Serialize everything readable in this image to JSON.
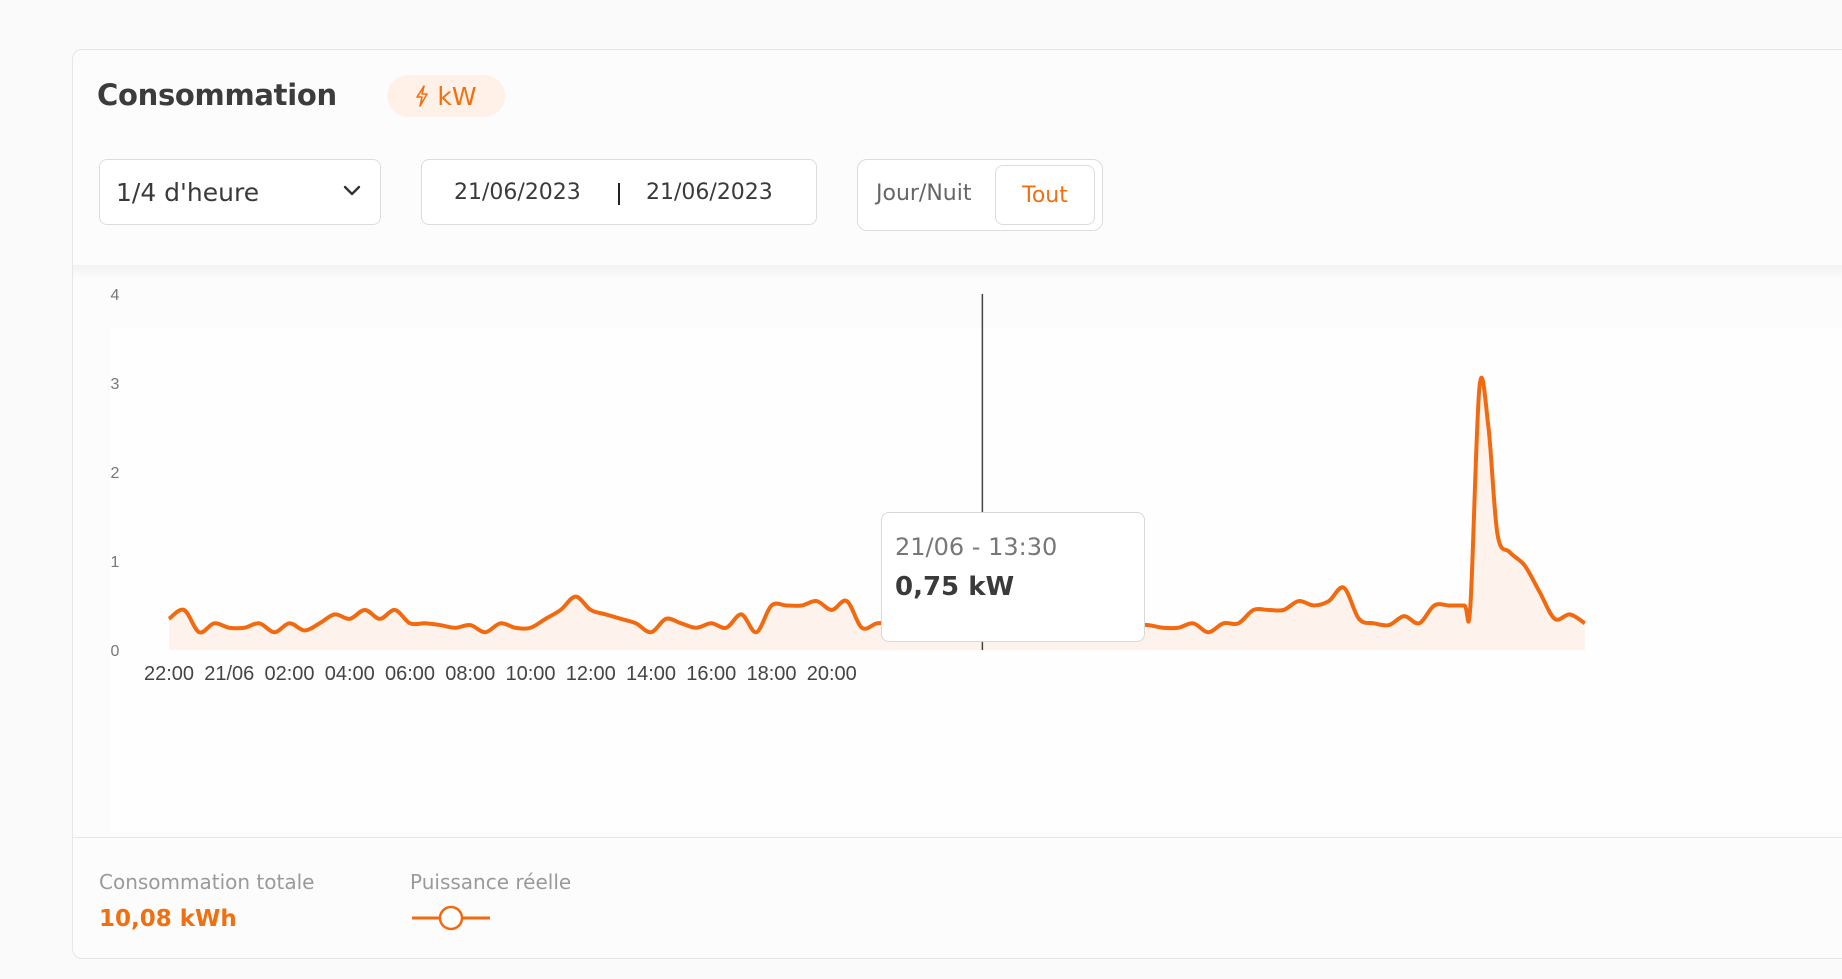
{
  "header": {
    "title": "Consommation",
    "unit_badge": "kW",
    "unit_icon": "bolt-icon"
  },
  "controls": {
    "granularity": "1/4 d'heure",
    "date_start": "21/06/2023",
    "date_end": "21/06/2023",
    "toggle_options": [
      "Jour/Nuit",
      "Tout"
    ],
    "toggle_selected": "Tout"
  },
  "tooltip": {
    "date": "21/06 - 13:30",
    "value": "0,75 kW"
  },
  "footer": {
    "total_label": "Consommation totale",
    "total_value": "10,08 kWh",
    "legend_label": "Puissance réelle"
  },
  "colors": {
    "accent": "#f07010",
    "line": "#f26a10",
    "fill": "#fdf3ec"
  },
  "chart_data": {
    "type": "area",
    "x_tick_labels": [
      "22:00",
      "21/06",
      "02:00",
      "04:00",
      "06:00",
      "08:00",
      "10:00",
      "12:00",
      "14:00",
      "16:00",
      "18:00",
      "20:00"
    ],
    "y_tick_labels": [
      "0",
      "1",
      "2",
      "3",
      "4"
    ],
    "ylim": [
      0,
      4
    ],
    "series": [
      {
        "name": "Puissance réelle",
        "points": [
          [
            0,
            0.35
          ],
          [
            0.25,
            0.45
          ],
          [
            0.5,
            0.2
          ],
          [
            0.75,
            0.3
          ],
          [
            1,
            0.25
          ],
          [
            1.25,
            0.25
          ],
          [
            1.5,
            0.3
          ],
          [
            1.75,
            0.2
          ],
          [
            2,
            0.3
          ],
          [
            2.25,
            0.22
          ],
          [
            2.5,
            0.3
          ],
          [
            2.75,
            0.4
          ],
          [
            3,
            0.35
          ],
          [
            3.25,
            0.45
          ],
          [
            3.5,
            0.35
          ],
          [
            3.75,
            0.45
          ],
          [
            4,
            0.3
          ],
          [
            4.25,
            0.3
          ],
          [
            4.5,
            0.28
          ],
          [
            4.75,
            0.25
          ],
          [
            5,
            0.28
          ],
          [
            5.25,
            0.2
          ],
          [
            5.5,
            0.3
          ],
          [
            5.75,
            0.25
          ],
          [
            6,
            0.25
          ],
          [
            6.25,
            0.35
          ],
          [
            6.5,
            0.45
          ],
          [
            6.75,
            0.6
          ],
          [
            7,
            0.45
          ],
          [
            7.25,
            0.4
          ],
          [
            7.5,
            0.35
          ],
          [
            7.75,
            0.3
          ],
          [
            8,
            0.2
          ],
          [
            8.25,
            0.35
          ],
          [
            8.5,
            0.3
          ],
          [
            8.75,
            0.25
          ],
          [
            9,
            0.3
          ],
          [
            9.25,
            0.25
          ],
          [
            9.5,
            0.4
          ],
          [
            9.75,
            0.2
          ],
          [
            10,
            0.5
          ],
          [
            10.25,
            0.5
          ],
          [
            10.5,
            0.5
          ],
          [
            10.75,
            0.55
          ],
          [
            11,
            0.45
          ],
          [
            11.25,
            0.55
          ],
          [
            11.5,
            0.25
          ],
          [
            11.75,
            0.3
          ],
          [
            12,
            0.3
          ],
          [
            12.25,
            0.3
          ],
          [
            12.5,
            0.45
          ],
          [
            12.75,
            0.25
          ],
          [
            13,
            0.3
          ],
          [
            13.25,
            0.45
          ],
          [
            13.5,
            0.75
          ],
          [
            13.75,
            0.65
          ],
          [
            14,
            0.55
          ],
          [
            14.25,
            0.5
          ],
          [
            14.5,
            0.4
          ],
          [
            14.75,
            0.45
          ],
          [
            15,
            0.5
          ],
          [
            15.25,
            0.4
          ],
          [
            15.5,
            0.38
          ],
          [
            15.75,
            0.25
          ],
          [
            16,
            0.28
          ],
          [
            16.25,
            0.28
          ],
          [
            16.5,
            0.25
          ],
          [
            16.75,
            0.25
          ],
          [
            17,
            0.3
          ],
          [
            17.25,
            0.2
          ],
          [
            17.5,
            0.3
          ],
          [
            17.75,
            0.3
          ],
          [
            18,
            0.45
          ],
          [
            18.25,
            0.45
          ],
          [
            18.5,
            0.45
          ],
          [
            18.75,
            0.55
          ],
          [
            19,
            0.5
          ],
          [
            19.25,
            0.55
          ],
          [
            19.5,
            0.7
          ],
          [
            19.75,
            0.35
          ],
          [
            20,
            0.3
          ],
          [
            20.25,
            0.28
          ],
          [
            20.5,
            0.38
          ],
          [
            20.75,
            0.3
          ],
          [
            21,
            0.5
          ],
          [
            21.25,
            0.5
          ],
          [
            21.5,
            0.5
          ],
          [
            21.6,
            0.5
          ],
          [
            21.75,
            2.95
          ],
          [
            21.9,
            2.5
          ],
          [
            22.05,
            1.3
          ],
          [
            22.25,
            1.1
          ],
          [
            22.5,
            0.95
          ],
          [
            22.75,
            0.65
          ],
          [
            23,
            0.35
          ],
          [
            23.25,
            0.4
          ],
          [
            23.5,
            0.3
          ]
        ]
      }
    ],
    "highlight": {
      "x_tick_index": 13.5,
      "value": 0.75
    },
    "grid": false,
    "legend": "bottom-left"
  }
}
